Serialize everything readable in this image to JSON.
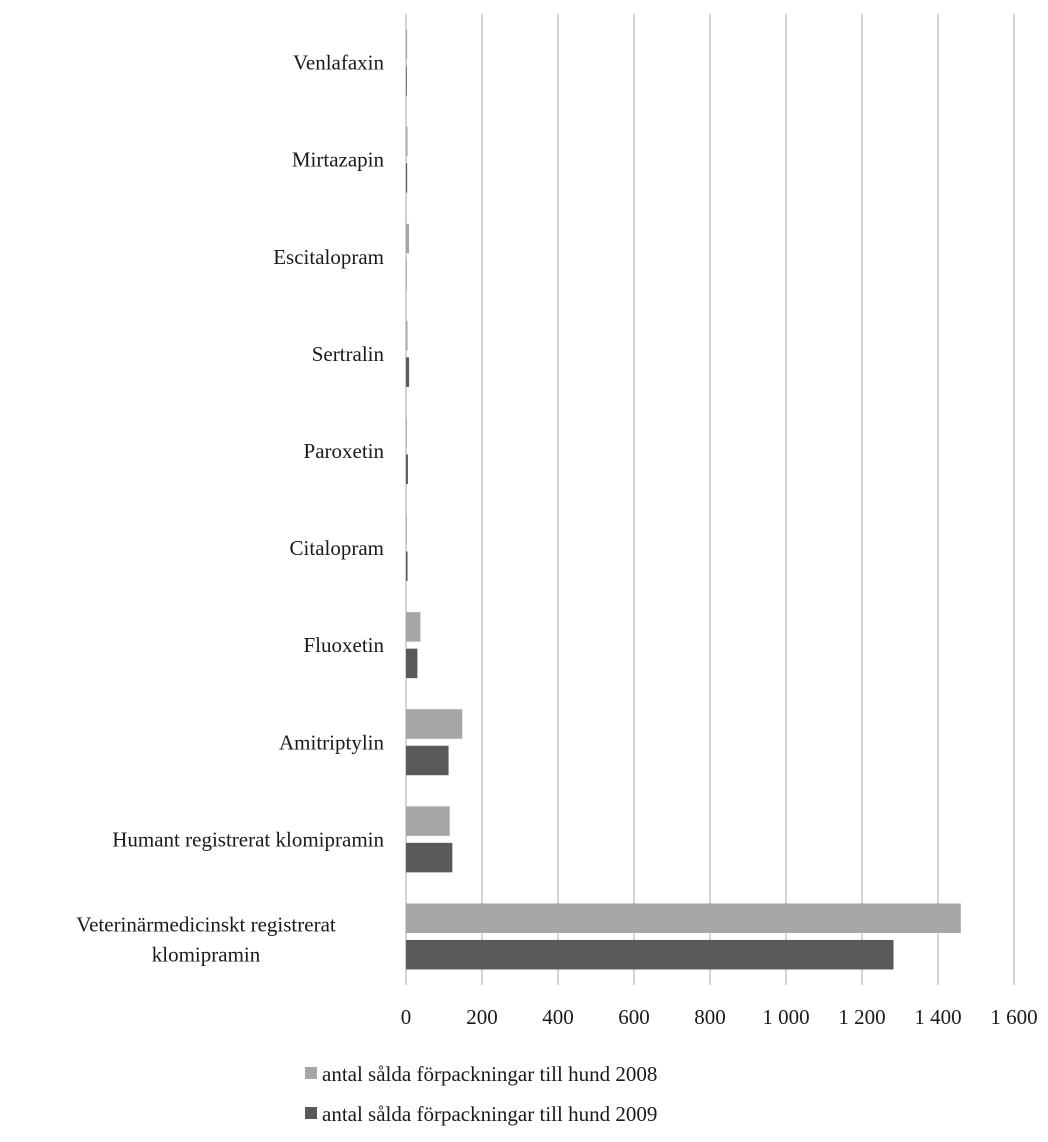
{
  "chart_data": {
    "type": "bar",
    "orientation": "horizontal",
    "title": "",
    "xlabel": "",
    "ylabel": "",
    "categories": [
      "Venlafaxin",
      "Mirtazapin",
      "Escitalopram",
      "Sertralin",
      "Paroxetin",
      "Citalopram",
      "Fluoxetin",
      "Amitriptylin",
      "Humant registrerat klomipramin",
      "Veterinärmedicinskt registrerat klomipramin"
    ],
    "series": [
      {
        "name": "antal sålda förpackningar till hund 2008",
        "color": "#a6a6a6",
        "values": [
          3,
          4,
          8,
          4,
          2,
          2,
          38,
          148,
          115,
          1460
        ]
      },
      {
        "name": "antal sålda förpackningar till hund 2009",
        "color": "#595959",
        "values": [
          2,
          3,
          1,
          8,
          5,
          4,
          30,
          112,
          122,
          1283
        ]
      }
    ],
    "xlim": [
      0,
      1600
    ],
    "xticks": [
      0,
      200,
      400,
      600,
      800,
      1000,
      1200,
      1400,
      1600
    ],
    "xtick_labels": [
      "0",
      "200",
      "400",
      "600",
      "800",
      "1 000",
      "1 200",
      "1 400",
      "1 600"
    ],
    "grid": "vertical",
    "legend_position": "bottom"
  }
}
